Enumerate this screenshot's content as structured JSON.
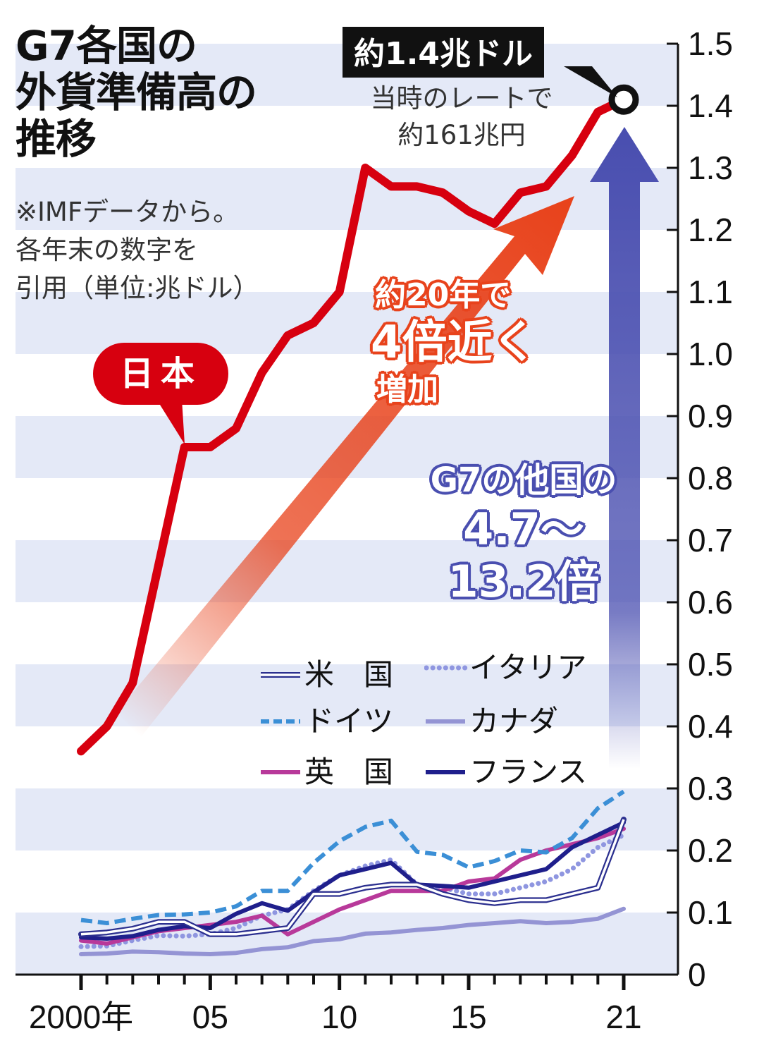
{
  "title": {
    "line1": "G7各国の",
    "line2": "外貨準備高の",
    "line3": "推移"
  },
  "note": {
    "line1": "※IMFデータから。",
    "line2": "各年末の数字を",
    "line3": "引用（単位:兆ドル）"
  },
  "callout": {
    "value": "約1.4兆ドル",
    "sub1": "当時のレートで",
    "sub2": "約161兆円"
  },
  "japan_label": "日本",
  "growth_annotation": {
    "line1": "約20年で",
    "line2": "4倍近く",
    "line3": "増加"
  },
  "g7_annotation": {
    "line1": "G7の他国の",
    "line2": "4.7〜",
    "line3": "13.2倍"
  },
  "colors": {
    "japan": "#d7000f",
    "usa": "#2b2f8f",
    "germany": "#3b8fd6",
    "uk": "#b8399a",
    "italy": "#8f96e0",
    "canada": "#9494d4",
    "france": "#1f1f8c",
    "band": "#e4e9f7",
    "growth_arrow": "#e8431c",
    "g7_arrow": "#4a4fb0"
  },
  "chart_data": {
    "type": "line",
    "title": "G7各国の外貨準備高の推移",
    "ylabel": "兆ドル",
    "xlabel": "",
    "x": [
      2000,
      2001,
      2002,
      2003,
      2004,
      2005,
      2006,
      2007,
      2008,
      2009,
      2010,
      2011,
      2012,
      2013,
      2014,
      2015,
      2016,
      2017,
      2018,
      2019,
      2020,
      2021
    ],
    "x_tick_labels": [
      {
        "x": 2000,
        "label": "2000年"
      },
      {
        "x": 2005,
        "label": "05"
      },
      {
        "x": 2010,
        "label": "10"
      },
      {
        "x": 2015,
        "label": "15"
      },
      {
        "x": 2021,
        "label": "21"
      }
    ],
    "ylim": [
      0,
      1.5
    ],
    "y_ticks": [
      "0",
      "0.1",
      "0.2",
      "0.3",
      "0.4",
      "0.5",
      "0.6",
      "0.7",
      "0.8",
      "0.9",
      "1.0",
      "1.1",
      "1.2",
      "1.3",
      "1.4",
      "1.5"
    ],
    "y_tick_values": [
      0,
      0.1,
      0.2,
      0.3,
      0.4,
      0.5,
      0.6,
      0.7,
      0.8,
      0.9,
      1.0,
      1.1,
      1.2,
      1.3,
      1.4,
      1.5
    ],
    "legend_position": "bottom-center",
    "series": [
      {
        "name": "日本",
        "key": "japan",
        "style": "solid-thick",
        "values": [
          0.36,
          0.4,
          0.47,
          0.66,
          0.85,
          0.85,
          0.88,
          0.97,
          1.03,
          1.05,
          1.1,
          1.3,
          1.27,
          1.27,
          1.26,
          1.23,
          1.21,
          1.26,
          1.27,
          1.32,
          1.39,
          1.41
        ]
      },
      {
        "name": "米国",
        "key": "usa",
        "style": "double",
        "values": [
          0.065,
          0.068,
          0.074,
          0.085,
          0.085,
          0.065,
          0.065,
          0.07,
          0.075,
          0.13,
          0.13,
          0.14,
          0.145,
          0.145,
          0.13,
          0.12,
          0.115,
          0.12,
          0.12,
          0.13,
          0.14,
          0.25
        ]
      },
      {
        "name": "ドイツ",
        "key": "germany",
        "style": "dashed",
        "values": [
          0.088,
          0.083,
          0.09,
          0.096,
          0.097,
          0.1,
          0.11,
          0.135,
          0.135,
          0.18,
          0.215,
          0.238,
          0.248,
          0.198,
          0.193,
          0.173,
          0.183,
          0.2,
          0.197,
          0.22,
          0.268,
          0.295
        ]
      },
      {
        "name": "英国",
        "key": "uk",
        "style": "solid",
        "values": [
          0.055,
          0.05,
          0.06,
          0.07,
          0.075,
          0.08,
          0.085,
          0.095,
          0.065,
          0.085,
          0.105,
          0.12,
          0.135,
          0.135,
          0.135,
          0.15,
          0.155,
          0.185,
          0.2,
          0.21,
          0.22,
          0.235
        ]
      },
      {
        "name": "イタリア",
        "key": "italy",
        "style": "dotted",
        "values": [
          0.045,
          0.046,
          0.055,
          0.063,
          0.062,
          0.065,
          0.075,
          0.095,
          0.105,
          0.135,
          0.16,
          0.175,
          0.185,
          0.145,
          0.14,
          0.13,
          0.13,
          0.14,
          0.15,
          0.17,
          0.205,
          0.225
        ]
      },
      {
        "name": "カナダ",
        "key": "canada",
        "style": "solid",
        "values": [
          0.033,
          0.034,
          0.037,
          0.036,
          0.034,
          0.033,
          0.035,
          0.041,
          0.044,
          0.054,
          0.057,
          0.066,
          0.068,
          0.072,
          0.075,
          0.08,
          0.083,
          0.086,
          0.083,
          0.085,
          0.09,
          0.106
        ]
      },
      {
        "name": "フランス",
        "key": "france",
        "style": "solid",
        "values": [
          0.06,
          0.058,
          0.062,
          0.072,
          0.078,
          0.075,
          0.098,
          0.115,
          0.103,
          0.133,
          0.16,
          0.17,
          0.18,
          0.145,
          0.143,
          0.14,
          0.15,
          0.16,
          0.17,
          0.205,
          0.225,
          0.245
        ]
      }
    ],
    "annotations": [
      {
        "text": "約1.4兆ドル",
        "x": 2021,
        "y": 1.41
      },
      {
        "text": "約20年で4倍近く増加"
      },
      {
        "text": "G7の他国の4.7〜13.2倍"
      }
    ]
  },
  "legend": [
    {
      "key": "usa",
      "label": "米　国"
    },
    {
      "key": "italy",
      "label": "イタリア"
    },
    {
      "key": "germany",
      "label": "ドイツ"
    },
    {
      "key": "canada",
      "label": "カナダ"
    },
    {
      "key": "uk",
      "label": "英　国"
    },
    {
      "key": "france",
      "label": "フランス"
    }
  ]
}
